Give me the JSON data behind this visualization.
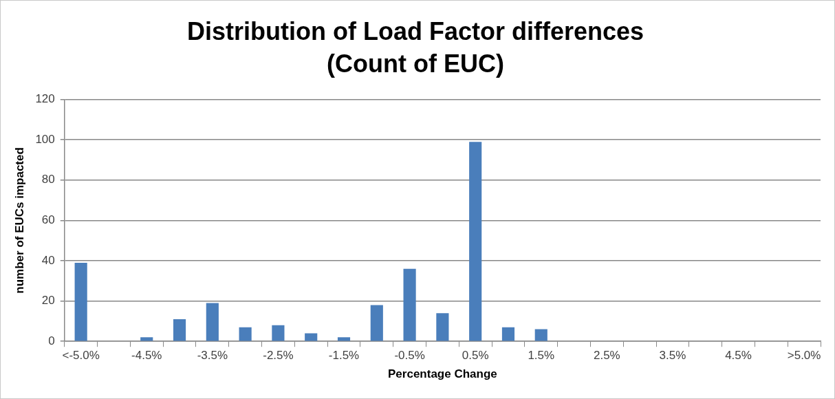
{
  "chart_data": {
    "type": "bar",
    "title": "Distribution of Load Factor differences\n(Count of EUC)",
    "xlabel": "Percentage Change",
    "ylabel": "number of EUCs impacted",
    "categories": [
      "<-5.0%",
      null,
      "-4.5%",
      null,
      "-3.5%",
      null,
      "-2.5%",
      null,
      "-1.5%",
      null,
      "-0.5%",
      null,
      "0.5%",
      null,
      "1.5%",
      null,
      "2.5%",
      null,
      "3.5%",
      null,
      "4.5%",
      null,
      ">5.0%"
    ],
    "values": [
      39,
      0,
      2,
      11,
      19,
      7,
      8,
      4,
      2,
      18,
      36,
      14,
      99,
      7,
      6,
      0,
      0,
      0,
      0,
      0,
      0,
      0,
      0
    ],
    "color": "#4a7ebb",
    "ylim": [
      0,
      120
    ],
    "yticks": [
      0,
      20,
      40,
      60,
      80,
      100,
      120
    ],
    "grid": "y",
    "legend": false
  }
}
